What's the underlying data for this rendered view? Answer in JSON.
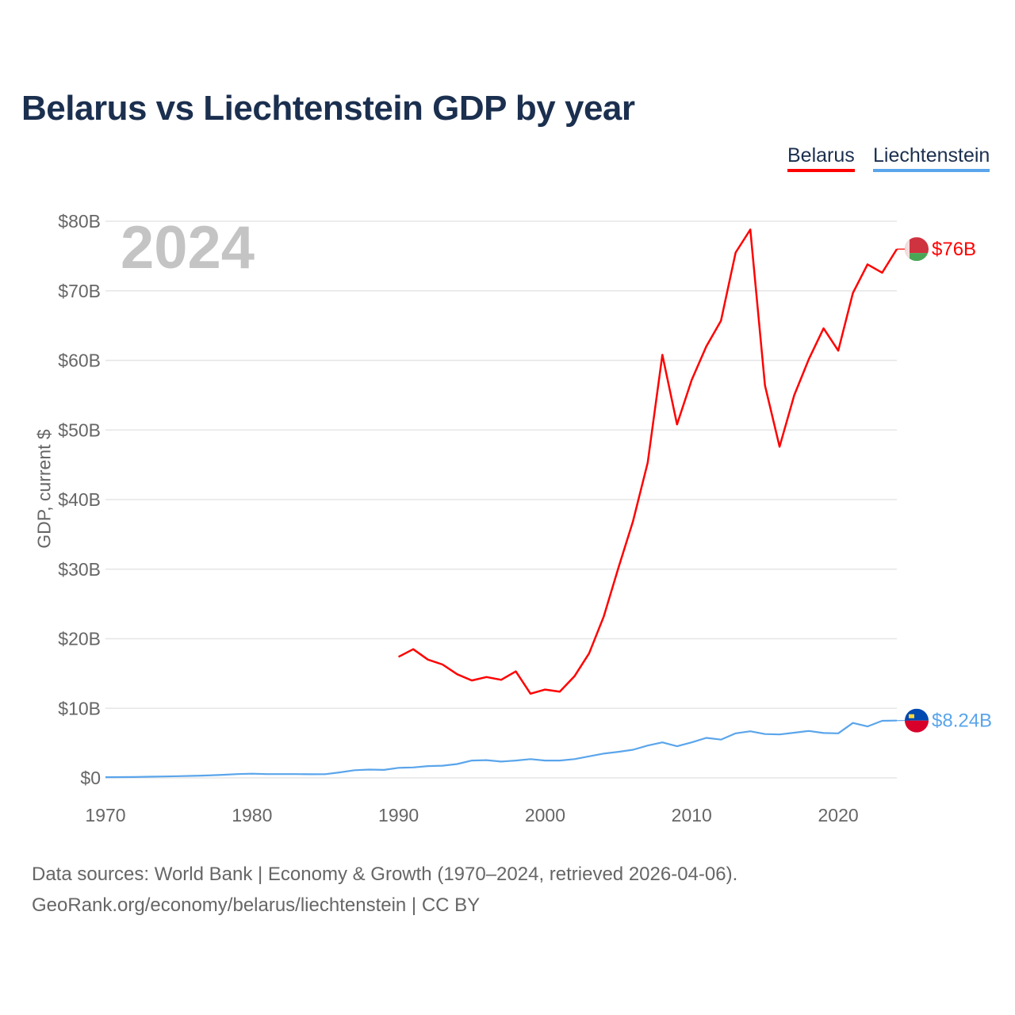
{
  "title": "Belarus vs Liechtenstein GDP by year",
  "legend": [
    "Belarus",
    "Liechtenstein"
  ],
  "year_label": "2024",
  "footer": {
    "line1": "Data sources: World Bank | Economy & Growth (1970–2024, retrieved 2026-04-06).",
    "line2": "GeoRank.org/economy/belarus/liechtenstein | CC BY"
  },
  "chart_data": {
    "type": "line",
    "title": "Belarus vs Liechtenstein GDP by year",
    "xlabel": "",
    "ylabel": "GDP, current $",
    "xlim": [
      1970,
      2024
    ],
    "ylim": [
      0,
      80
    ],
    "x_ticks": [
      1970,
      1980,
      1990,
      2000,
      2010,
      2020
    ],
    "x_tick_labels": [
      "1970",
      "1980",
      "1990",
      "2000",
      "2010",
      "2020"
    ],
    "y_ticks": [
      0,
      10,
      20,
      30,
      40,
      50,
      60,
      70,
      80
    ],
    "y_tick_labels": [
      "$0",
      "$10B",
      "$20B",
      "$30B",
      "$40B",
      "$50B",
      "$60B",
      "$70B",
      "$80B"
    ],
    "grid": true,
    "legend_position": "top-right",
    "series": [
      {
        "name": "Belarus",
        "color": "#ff0000",
        "end_label": "$76B",
        "start_year": 1990,
        "values": [
          17.4,
          18.5,
          17.0,
          16.3,
          14.9,
          14.0,
          14.5,
          14.1,
          15.3,
          12.1,
          12.7,
          12.4,
          14.6,
          17.9,
          23.2,
          30.2,
          36.9,
          45.3,
          60.8,
          50.8,
          57.2,
          62.0,
          65.7,
          75.5,
          78.8,
          56.4,
          47.6,
          55.0,
          60.2,
          64.6,
          61.4,
          69.7,
          73.8,
          72.6,
          76.0
        ]
      },
      {
        "name": "Liechtenstein",
        "color": "#5aa5eb",
        "end_label": "$8.24B",
        "start_year": 1970,
        "values": [
          0.1,
          0.11,
          0.13,
          0.17,
          0.2,
          0.25,
          0.3,
          0.35,
          0.45,
          0.55,
          0.6,
          0.55,
          0.55,
          0.55,
          0.52,
          0.54,
          0.8,
          1.1,
          1.2,
          1.15,
          1.45,
          1.5,
          1.7,
          1.75,
          2.0,
          2.5,
          2.55,
          2.35,
          2.5,
          2.7,
          2.5,
          2.5,
          2.7,
          3.1,
          3.5,
          3.75,
          4.05,
          4.65,
          5.1,
          4.55,
          5.1,
          5.75,
          5.5,
          6.4,
          6.7,
          6.3,
          6.25,
          6.5,
          6.75,
          6.45,
          6.4,
          7.9,
          7.4,
          8.2,
          8.24
        ]
      }
    ]
  }
}
